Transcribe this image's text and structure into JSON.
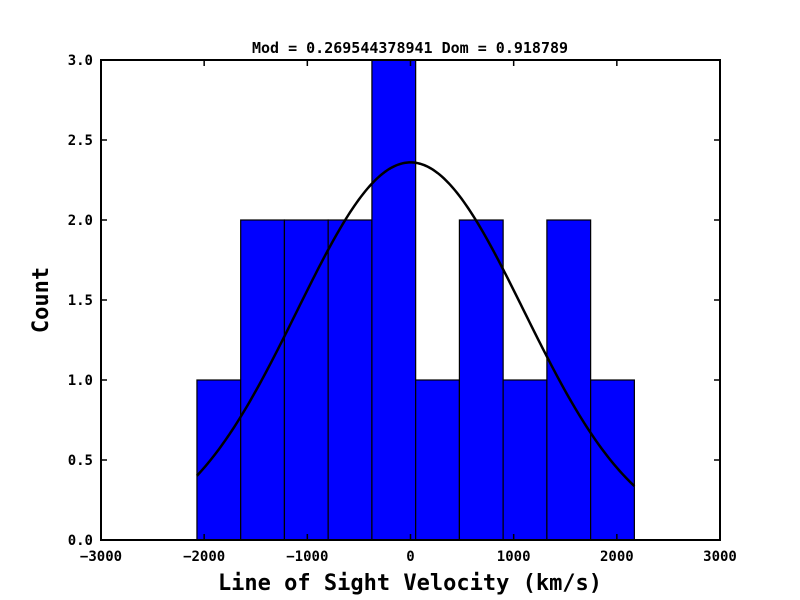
{
  "chart_data": {
    "type": "bar",
    "title": "Mod = 0.269544378941 Dom = 0.918789",
    "xlabel": "Line of Sight Velocity (km/s)",
    "ylabel": "Count",
    "xlim": [
      -3000,
      3000
    ],
    "ylim": [
      0,
      3
    ],
    "xticks": [
      -3000,
      -2000,
      -1000,
      0,
      1000,
      2000,
      3000
    ],
    "xtick_labels": [
      "−3000",
      "−2000",
      "−1000",
      "0",
      "1000",
      "2000",
      "3000"
    ],
    "yticks": [
      0,
      0.5,
      1,
      1.5,
      2,
      2.5,
      3
    ],
    "ytick_labels": [
      "0.0",
      "0.5",
      "1.0",
      "1.5",
      "2.0",
      "2.5",
      "3.0"
    ],
    "grid": false,
    "bar_color": "#0000ff",
    "bar_edge_color": "#000000",
    "curve_color": "#000000",
    "bins": [
      {
        "left": -2070,
        "right": -1646,
        "count": 1
      },
      {
        "left": -1646,
        "right": -1222,
        "count": 2
      },
      {
        "left": -1222,
        "right": -798,
        "count": 2
      },
      {
        "left": -798,
        "right": -374,
        "count": 2
      },
      {
        "left": -374,
        "right": 50,
        "count": 3
      },
      {
        "left": 50,
        "right": 474,
        "count": 1
      },
      {
        "left": 474,
        "right": 898,
        "count": 2
      },
      {
        "left": 898,
        "right": 1322,
        "count": 1
      },
      {
        "left": 1322,
        "right": 1746,
        "count": 2
      },
      {
        "left": 1746,
        "right": 2170,
        "count": 1
      }
    ],
    "gaussian_fit": {
      "amplitude": 2.36,
      "mean": 0,
      "sigma": 1100,
      "x_range": [
        -2070,
        2170
      ]
    }
  }
}
